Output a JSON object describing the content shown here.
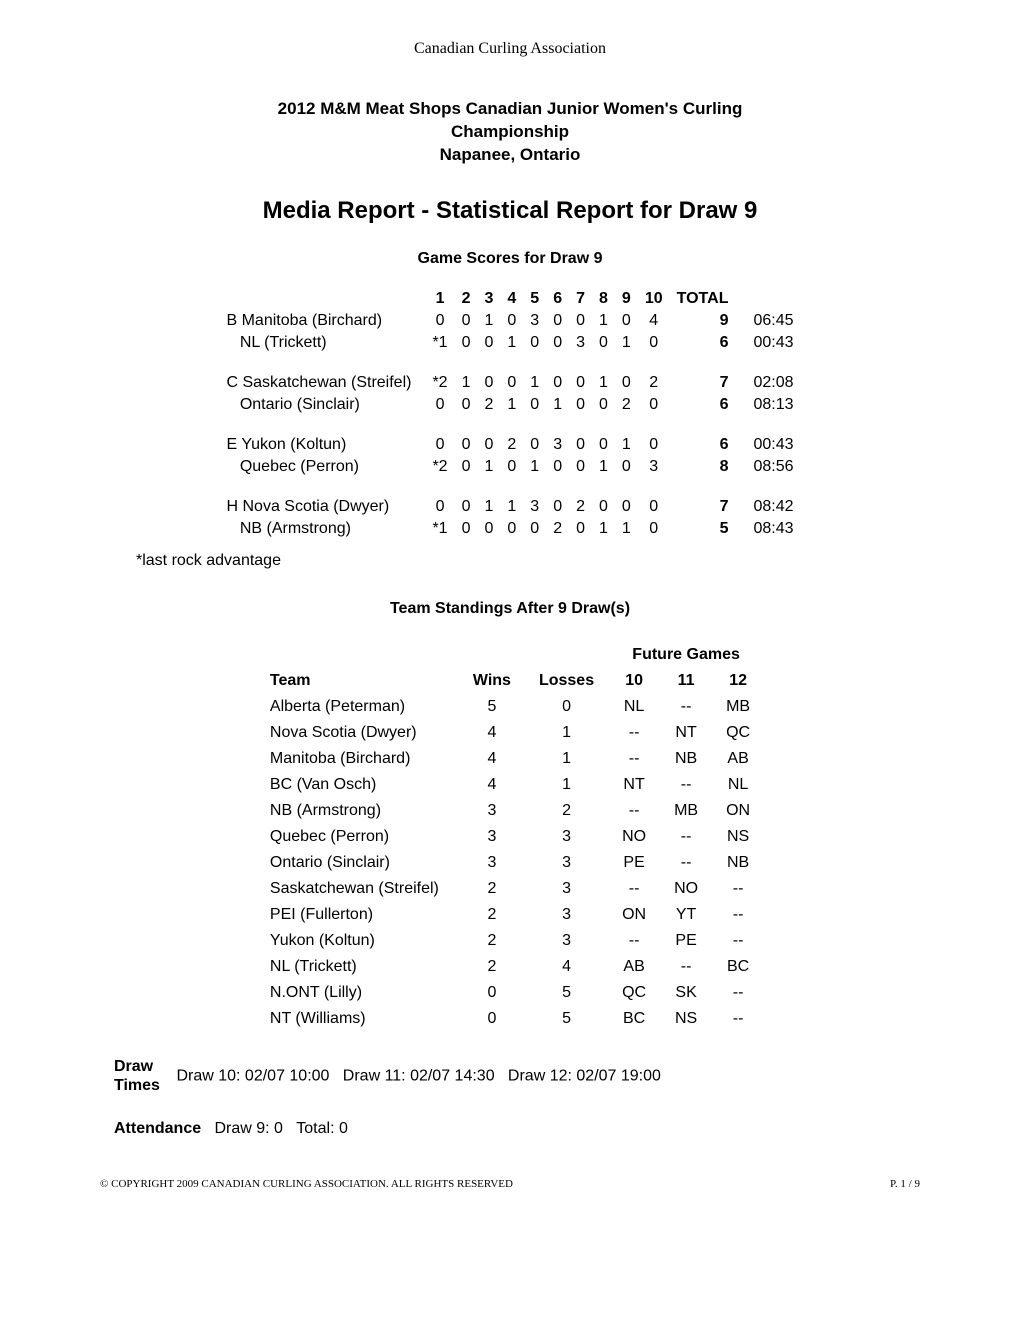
{
  "org": "Canadian Curling Association",
  "event": {
    "line1": "2012 M&M Meat Shops Canadian Junior Women's Curling",
    "line2": "Championship",
    "location": "Napanee, Ontario"
  },
  "main_title": "Media Report - Statistical Report for Draw 9",
  "scores": {
    "title": "Game Scores for Draw 9",
    "end_headers": [
      "1",
      "2",
      "3",
      "4",
      "5",
      "6",
      "7",
      "8",
      "9",
      "10"
    ],
    "total_header": "TOTAL",
    "games": [
      {
        "sheet": "B",
        "rows": [
          {
            "team": "Manitoba (Birchard)",
            "ends": [
              "0",
              "0",
              "1",
              "0",
              "3",
              "0",
              "0",
              "1",
              "0",
              "4"
            ],
            "total": "9",
            "time": "06:45"
          },
          {
            "team": "NL (Trickett)",
            "ends": [
              "*1",
              "0",
              "0",
              "1",
              "0",
              "0",
              "3",
              "0",
              "1",
              "0"
            ],
            "total": "6",
            "time": "00:43"
          }
        ]
      },
      {
        "sheet": "C",
        "rows": [
          {
            "team": "Saskatchewan (Streifel)",
            "ends": [
              "*2",
              "1",
              "0",
              "0",
              "1",
              "0",
              "0",
              "1",
              "0",
              "2"
            ],
            "total": "7",
            "time": "02:08"
          },
          {
            "team": "Ontario (Sinclair)",
            "ends": [
              "0",
              "0",
              "2",
              "1",
              "0",
              "1",
              "0",
              "0",
              "2",
              "0"
            ],
            "total": "6",
            "time": "08:13"
          }
        ]
      },
      {
        "sheet": "E",
        "rows": [
          {
            "team": "Yukon (Koltun)",
            "ends": [
              "0",
              "0",
              "0",
              "2",
              "0",
              "3",
              "0",
              "0",
              "1",
              "0"
            ],
            "total": "6",
            "time": "00:43"
          },
          {
            "team": "Quebec (Perron)",
            "ends": [
              "*2",
              "0",
              "1",
              "0",
              "1",
              "0",
              "0",
              "1",
              "0",
              "3"
            ],
            "total": "8",
            "time": "08:56"
          }
        ]
      },
      {
        "sheet": "H",
        "rows": [
          {
            "team": "Nova Scotia (Dwyer)",
            "ends": [
              "0",
              "0",
              "1",
              "1",
              "3",
              "0",
              "2",
              "0",
              "0",
              "0"
            ],
            "total": "7",
            "time": "08:42"
          },
          {
            "team": "NB (Armstrong)",
            "ends": [
              "*1",
              "0",
              "0",
              "0",
              "0",
              "2",
              "0",
              "1",
              "1",
              "0"
            ],
            "total": "5",
            "time": "08:43"
          }
        ]
      }
    ],
    "note": "*last rock advantage"
  },
  "standings": {
    "title": "Team Standings After 9 Draw(s)",
    "headers": {
      "team": "Team",
      "wins": "Wins",
      "losses": "Losses",
      "future": "Future Games",
      "d10": "10",
      "d11": "11",
      "d12": "12"
    },
    "rows": [
      {
        "team": "Alberta (Peterman)",
        "w": "5",
        "l": "0",
        "g10": "NL",
        "g11": "--",
        "g12": "MB"
      },
      {
        "team": "Nova Scotia (Dwyer)",
        "w": "4",
        "l": "1",
        "g10": "--",
        "g11": "NT",
        "g12": "QC"
      },
      {
        "team": "Manitoba (Birchard)",
        "w": "4",
        "l": "1",
        "g10": "--",
        "g11": "NB",
        "g12": "AB"
      },
      {
        "team": "BC (Van Osch)",
        "w": "4",
        "l": "1",
        "g10": "NT",
        "g11": "--",
        "g12": "NL"
      },
      {
        "team": "NB (Armstrong)",
        "w": "3",
        "l": "2",
        "g10": "--",
        "g11": "MB",
        "g12": "ON"
      },
      {
        "team": "Quebec (Perron)",
        "w": "3",
        "l": "3",
        "g10": "NO",
        "g11": "--",
        "g12": "NS"
      },
      {
        "team": "Ontario (Sinclair)",
        "w": "3",
        "l": "3",
        "g10": "PE",
        "g11": "--",
        "g12": "NB"
      },
      {
        "team": "Saskatchewan (Streifel)",
        "w": "2",
        "l": "3",
        "g10": "--",
        "g11": "NO",
        "g12": "--"
      },
      {
        "team": "PEI (Fullerton)",
        "w": "2",
        "l": "3",
        "g10": "ON",
        "g11": "YT",
        "g12": "--"
      },
      {
        "team": "Yukon (Koltun)",
        "w": "2",
        "l": "3",
        "g10": "--",
        "g11": "PE",
        "g12": "--"
      },
      {
        "team": "NL (Trickett)",
        "w": "2",
        "l": "4",
        "g10": "AB",
        "g11": "--",
        "g12": "BC"
      },
      {
        "team": "N.ONT (Lilly)",
        "w": "0",
        "l": "5",
        "g10": "QC",
        "g11": "SK",
        "g12": "--"
      },
      {
        "team": "NT (Williams)",
        "w": "0",
        "l": "5",
        "g10": "BC",
        "g11": "NS",
        "g12": "--"
      }
    ]
  },
  "draw_times": {
    "label": "Draw Times",
    "entries": [
      "Draw 10: 02/07 10:00",
      "Draw 11: 02/07 14:30",
      "Draw 12: 02/07 19:00"
    ]
  },
  "attendance": {
    "label": "Attendance",
    "text": "Draw 9: 0   Total: 0"
  },
  "footer": {
    "left": "© COPYRIGHT 2009 CANADIAN CURLING ASSOCIATION. ALL RIGHTS RESERVED",
    "right": "P. 1 / 9"
  }
}
